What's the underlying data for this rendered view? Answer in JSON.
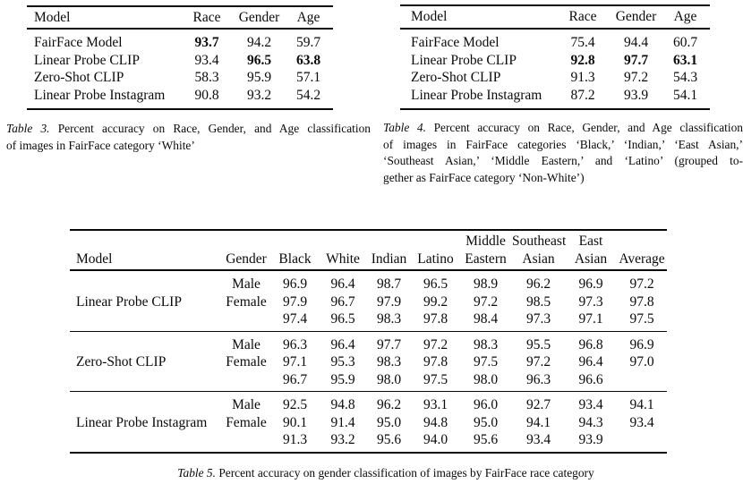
{
  "page": {
    "background_color": "#ffffff",
    "text_color": "#0a0a0a"
  },
  "table3": {
    "headers": [
      "Model",
      "Race",
      "Gender",
      "Age"
    ],
    "rows": [
      {
        "model": "FairFace Model",
        "values": [
          "93.7",
          "94.2",
          "59.7"
        ],
        "bold": [
          true,
          false,
          false
        ]
      },
      {
        "model": "Linear Probe CLIP",
        "values": [
          "93.4",
          "96.5",
          "63.8"
        ],
        "bold": [
          false,
          true,
          true
        ]
      },
      {
        "model": "Zero-Shot CLIP",
        "values": [
          "58.3",
          "95.9",
          "57.1"
        ],
        "bold": [
          false,
          false,
          false
        ]
      },
      {
        "model": "Linear Probe Instagram",
        "values": [
          "90.8",
          "93.2",
          "54.2"
        ],
        "bold": [
          false,
          false,
          false
        ]
      }
    ],
    "caption": {
      "label": "Table 3.",
      "lines": [
        "Percent accuracy on Race, Gender, and Age classification",
        "of images in FairFace category ‘White’"
      ]
    }
  },
  "table4": {
    "headers": [
      "Model",
      "Race",
      "Gender",
      "Age"
    ],
    "rows": [
      {
        "model": "FairFace Model",
        "values": [
          "75.4",
          "94.4",
          "60.7"
        ],
        "bold": [
          false,
          false,
          false
        ]
      },
      {
        "model": "Linear Probe CLIP",
        "values": [
          "92.8",
          "97.7",
          "63.1"
        ],
        "bold": [
          true,
          true,
          true
        ]
      },
      {
        "model": "Zero-Shot CLIP",
        "values": [
          "91.3",
          "97.2",
          "54.3"
        ],
        "bold": [
          false,
          false,
          false
        ]
      },
      {
        "model": "Linear Probe Instagram",
        "values": [
          "87.2",
          "93.9",
          "54.1"
        ],
        "bold": [
          false,
          false,
          false
        ]
      }
    ],
    "caption": {
      "label": "Table 4.",
      "lines": [
        "Percent accuracy on Race, Gender, and Age classification",
        "of images in FairFace categories ‘Black,’ ‘Indian,’ ‘East Asian,’",
        "‘Southeast Asian,’ ‘Middle Eastern,’ and ‘Latino’ (grouped to-",
        "gether as FairFace category ‘Non-White’)"
      ]
    }
  },
  "table5": {
    "header_row1": [
      "",
      "",
      "",
      "",
      "",
      "",
      "Middle",
      "Southeast",
      "East",
      ""
    ],
    "header_row2": [
      "Model",
      "Gender",
      "Black",
      "White",
      "Indian",
      "Latino",
      "Eastern",
      "Asian",
      "Asian",
      "Average"
    ],
    "groups": [
      {
        "model": "Linear Probe CLIP",
        "rows": [
          {
            "gender": "Male",
            "values": [
              "96.9",
              "96.4",
              "98.7",
              "96.5",
              "98.9",
              "96.2",
              "96.9",
              "97.2"
            ]
          },
          {
            "gender": "Female",
            "values": [
              "97.9",
              "96.7",
              "97.9",
              "99.2",
              "97.2",
              "98.5",
              "97.3",
              "97.8"
            ]
          },
          {
            "gender": "",
            "values": [
              "97.4",
              "96.5",
              "98.3",
              "97.8",
              "98.4",
              "97.3",
              "97.1",
              "97.5"
            ]
          }
        ]
      },
      {
        "model": "Zero-Shot CLIP",
        "rows": [
          {
            "gender": "Male",
            "values": [
              "96.3",
              "96.4",
              "97.7",
              "97.2",
              "98.3",
              "95.5",
              "96.8",
              "96.9"
            ]
          },
          {
            "gender": "Female",
            "values": [
              "97.1",
              "95.3",
              "98.3",
              "97.8",
              "97.5",
              "97.2",
              "96.4",
              "97.0"
            ]
          },
          {
            "gender": "",
            "values": [
              "96.7",
              "95.9",
              "98.0",
              "97.5",
              "98.0",
              "96.3",
              "96.6",
              ""
            ]
          }
        ]
      },
      {
        "model": "Linear Probe Instagram",
        "rows": [
          {
            "gender": "Male",
            "values": [
              "92.5",
              "94.8",
              "96.2",
              "93.1",
              "96.0",
              "92.7",
              "93.4",
              "94.1"
            ]
          },
          {
            "gender": "Female",
            "values": [
              "90.1",
              "91.4",
              "95.0",
              "94.8",
              "95.0",
              "94.1",
              "94.3",
              "93.4"
            ]
          },
          {
            "gender": "",
            "values": [
              "91.3",
              "93.2",
              "95.6",
              "94.0",
              "95.6",
              "93.4",
              "93.9",
              ""
            ]
          }
        ]
      }
    ],
    "caption": {
      "label": "Table 5.",
      "lines": [
        "Percent accuracy on gender classification of images by FairFace race category"
      ]
    }
  }
}
